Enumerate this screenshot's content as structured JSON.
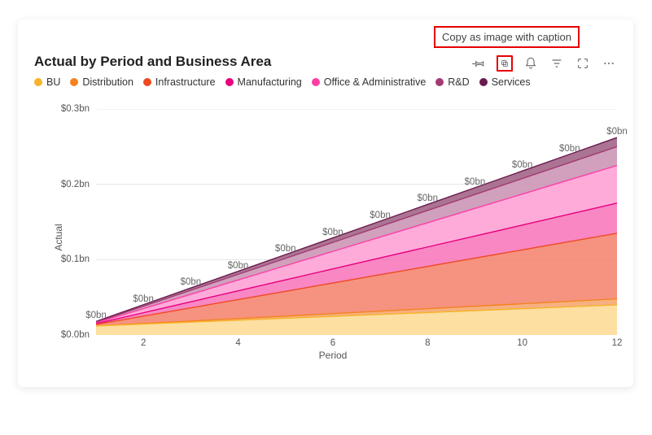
{
  "card": {
    "title": "Actual by Period and Business Area",
    "tooltip": "Copy as image with caption"
  },
  "chart": {
    "type": "area",
    "ylabel": "Actual",
    "xlabel": "Period",
    "ylim": [
      0.0,
      0.3
    ],
    "yticks": [
      0.0,
      0.1,
      0.2,
      0.3
    ],
    "ytick_labels": [
      "$0.0bn",
      "$0.1bn",
      "$0.2bn",
      "$0.3bn"
    ],
    "xlim": [
      1,
      12
    ],
    "xticks": [
      2,
      4,
      6,
      8,
      10,
      12
    ],
    "xtick_labels": [
      "2",
      "4",
      "6",
      "8",
      "10",
      "12"
    ],
    "grid_color": "#e5e5e5",
    "background_color": "#ffffff",
    "label_fontsize": 12,
    "tick_fontsize": 11.5,
    "series": [
      {
        "name": "BU",
        "color": "#f7b32b",
        "fill": "#fbd990",
        "y_end": 0.04,
        "y_start": 0.012
      },
      {
        "name": "Distribution",
        "color": "#f58220",
        "fill": "#f5a26a",
        "y_end": 0.048,
        "y_start": 0.012
      },
      {
        "name": "Infrastructure",
        "color": "#ef4923",
        "fill": "#f3806a",
        "y_end": 0.135,
        "y_start": 0.014
      },
      {
        "name": "Manufacturing",
        "color": "#e6007e",
        "fill": "#f772b9",
        "y_end": 0.175,
        "y_start": 0.015
      },
      {
        "name": "Office & Administrative",
        "color": "#ff3fa4",
        "fill": "#ff9cd4",
        "y_end": 0.225,
        "y_start": 0.016
      },
      {
        "name": "R&D",
        "color": "#a23b72",
        "fill": "#c88fb2",
        "y_end": 0.25,
        "y_start": 0.017
      },
      {
        "name": "Services",
        "color": "#6a1b4d",
        "fill": "#9c5c80",
        "y_end": 0.262,
        "y_start": 0.018
      }
    ],
    "data_labels": [
      "$0bn",
      "$0bn",
      "$0bn",
      "$0bn",
      "$0bn",
      "$0bn",
      "$0bn",
      "$0bn",
      "$0bn",
      "$0bn",
      "$0bn",
      "$0bn"
    ]
  },
  "toolbar": {
    "pin": "pin-icon",
    "copy": "copy-icon",
    "alert": "bell-icon",
    "filter": "filter-icon",
    "focus": "focus-icon",
    "more": "more-icon"
  },
  "highlight_color": "#e60000"
}
